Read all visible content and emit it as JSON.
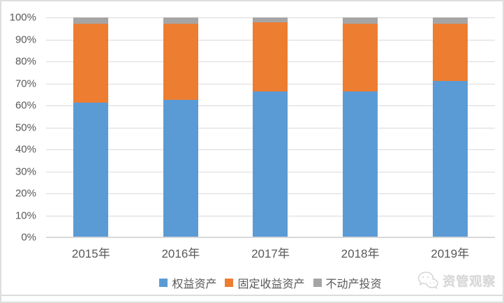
{
  "chart_data": {
    "type": "bar",
    "stacking": "percent",
    "title": "",
    "categories": [
      "2015年",
      "2016年",
      "2017年",
      "2018年",
      "2019年"
    ],
    "series": [
      {
        "name": "权益资产",
        "color": "#5B9BD5",
        "values": [
          61.2,
          62.5,
          66.5,
          66.3,
          71.0
        ]
      },
      {
        "name": "固定收益资产",
        "color": "#ED7D31",
        "values": [
          35.8,
          34.5,
          31.2,
          30.7,
          26.2
        ]
      },
      {
        "name": "不动产投资",
        "color": "#A5A5A5",
        "values": [
          3.0,
          3.0,
          2.3,
          3.0,
          2.8
        ]
      }
    ],
    "y_axis": {
      "min": 0,
      "max": 100,
      "tick_labels": [
        "0%",
        "10%",
        "20%",
        "30%",
        "40%",
        "50%",
        "60%",
        "70%",
        "80%",
        "90%",
        "100%"
      ],
      "grid": true
    },
    "legend_position": "bottom"
  },
  "watermark": {
    "text": "资管观察",
    "icon": "wechat-logo"
  },
  "colors": {
    "gridline": "#D9D9D9",
    "axis_line": "#D9D9D9",
    "tick_text": "#595959",
    "watermark_text": "#D6D6D6"
  }
}
